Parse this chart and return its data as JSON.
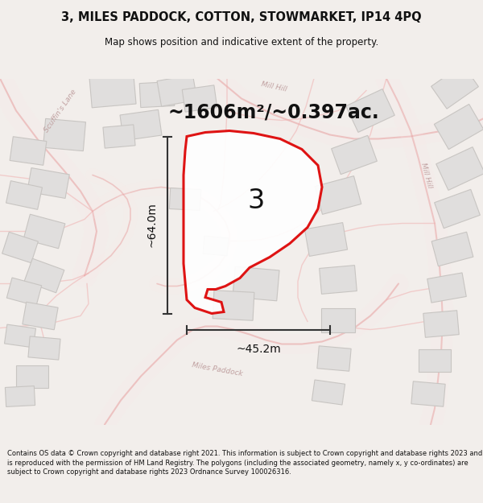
{
  "title": "3, MILES PADDOCK, COTTON, STOWMARKET, IP14 4PQ",
  "subtitle": "Map shows position and indicative extent of the property.",
  "footer": "Contains OS data © Crown copyright and database right 2021. This information is subject to Crown copyright and database rights 2023 and is reproduced with the permission of HM Land Registry. The polygons (including the associated geometry, namely x, y co-ordinates) are subject to Crown copyright and database rights 2023 Ordnance Survey 100026316.",
  "area_text": "~1606m²/~0.397ac.",
  "dim_width": "~45.2m",
  "dim_height": "~64.0m",
  "plot_label": "3",
  "bg_color": "#f2eeeb",
  "map_bg": "#ffffff",
  "road_color": "#e8a0a0",
  "road_fill": "#fce8e8",
  "plot_edge": "#dd0000",
  "building_fill": "#e0dedd",
  "building_edge": "#c8c5c2",
  "parcel_edge": "#f0b0b0",
  "dim_color": "#333333",
  "text_color": "#111111",
  "road_label_color": "#c0a0a0",
  "street_label_color": "#bbaaaa"
}
